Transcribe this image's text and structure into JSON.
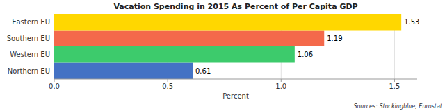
{
  "chart_data": {
    "type": "bar",
    "orientation": "horizontal",
    "title": "Vacation Spending in 2015 As Percent of Per Capita GDP",
    "categories": [
      "Northern EU",
      "Western EU",
      "Southern EU",
      "Eastern EU"
    ],
    "values": [
      0.61,
      1.06,
      1.19,
      1.53
    ],
    "colors": [
      "#4472C4",
      "#3DCB6C",
      "#F4694B",
      "#FFD700"
    ],
    "xlabel": "Percent",
    "xlim": [
      0,
      1.6
    ],
    "xticks": [
      {
        "value": 0.0,
        "label": "0.0"
      },
      0.5,
      {
        "value": 1.0,
        "label": "1.0"
      },
      1.5
    ],
    "grid": true,
    "data_labels": true,
    "annotations": [
      "Sources: Stockingblue, Eurostat"
    ]
  }
}
